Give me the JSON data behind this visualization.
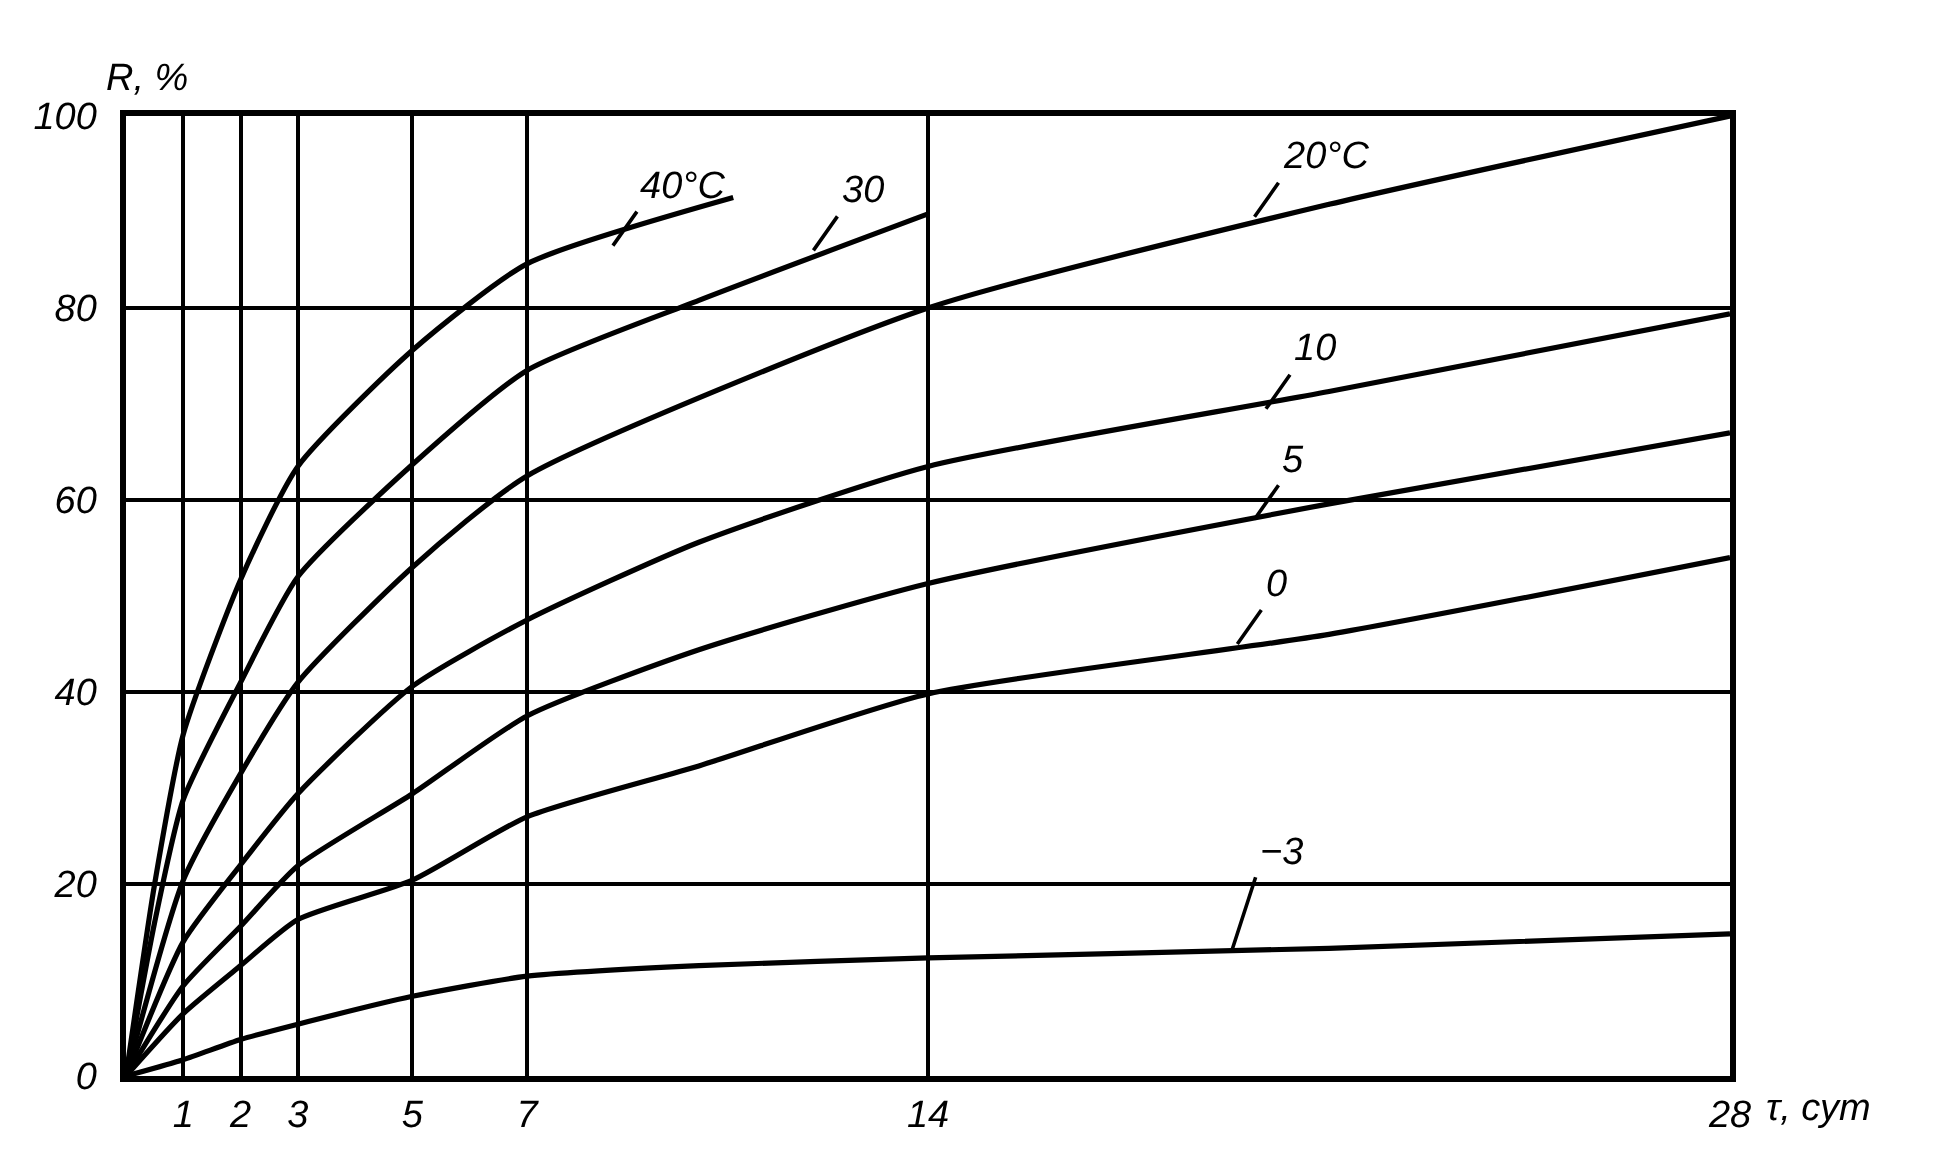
{
  "chart_data": {
    "type": "line",
    "xlabel": "τ, сут",
    "ylabel": "R, %",
    "xlim": [
      0,
      28
    ],
    "ylim": [
      0,
      100
    ],
    "xticks": [
      1,
      2,
      3,
      5,
      7,
      14,
      28
    ],
    "yticks": [
      0,
      20,
      40,
      60,
      80,
      100
    ],
    "grid": true,
    "marker": "none",
    "line_style": "solid",
    "series": [
      {
        "color": "#000000",
        "x": [
          0,
          0.5,
          1,
          2,
          3,
          5,
          7,
          10.6
        ],
        "values": [
          0,
          20,
          35.6,
          51.7,
          63.5,
          75.6,
          84.6,
          91.5
        ]
      },
      {
        "color": "#000000",
        "x": [
          0,
          0.5,
          1,
          2,
          3,
          5,
          7,
          10,
          14
        ],
        "values": [
          0,
          16,
          28.8,
          41,
          52,
          63.7,
          73.5,
          80.8,
          89.8
        ]
      },
      {
        "color": "#000000",
        "x": [
          0,
          1,
          2,
          3,
          5,
          7,
          14,
          21,
          28
        ],
        "values": [
          0,
          20.4,
          31.5,
          41,
          53,
          62.5,
          80,
          90.8,
          100
        ]
      },
      {
        "color": "#000000",
        "x": [
          0,
          1,
          2,
          3,
          5,
          7,
          10,
          14,
          21,
          28
        ],
        "values": [
          0,
          14,
          22,
          29.4,
          40.6,
          47.5,
          55.6,
          63.5,
          71.3,
          79.4
        ]
      },
      {
        "color": "#000000",
        "x": [
          0,
          1,
          2,
          3,
          5,
          7,
          10,
          14,
          21,
          28
        ],
        "values": [
          0,
          9.4,
          15.6,
          21.9,
          29.4,
          37.5,
          44.4,
          51.3,
          59.6,
          67
        ]
      },
      {
        "color": "#000000",
        "x": [
          0,
          1,
          2,
          3,
          5,
          7,
          10,
          14,
          21,
          28
        ],
        "values": [
          0,
          6.5,
          11.5,
          16.3,
          20.4,
          27,
          32.3,
          39.8,
          46,
          54
        ]
      },
      {
        "color": "#000000",
        "x": [
          0,
          1,
          2,
          3,
          5,
          7,
          10,
          14,
          21,
          28
        ],
        "values": [
          0,
          1.7,
          3.8,
          5.4,
          8.3,
          10.4,
          11.5,
          12.3,
          13.3,
          14.8
        ]
      }
    ],
    "annotations": [
      {
        "text": "40°C",
        "x": 8.5,
        "y": 86.5
      },
      {
        "text": "30",
        "x": 12.0,
        "y": 86
      },
      {
        "text": "20°C",
        "x": 19.7,
        "y": 89.5
      },
      {
        "text": "10",
        "x": 19.9,
        "y": 69.5
      },
      {
        "text": "5",
        "x": 19.7,
        "y": 58
      },
      {
        "text": "0",
        "x": 19.4,
        "y": 45
      },
      {
        "text": "−3",
        "x": 19.3,
        "y": 13
      }
    ]
  }
}
